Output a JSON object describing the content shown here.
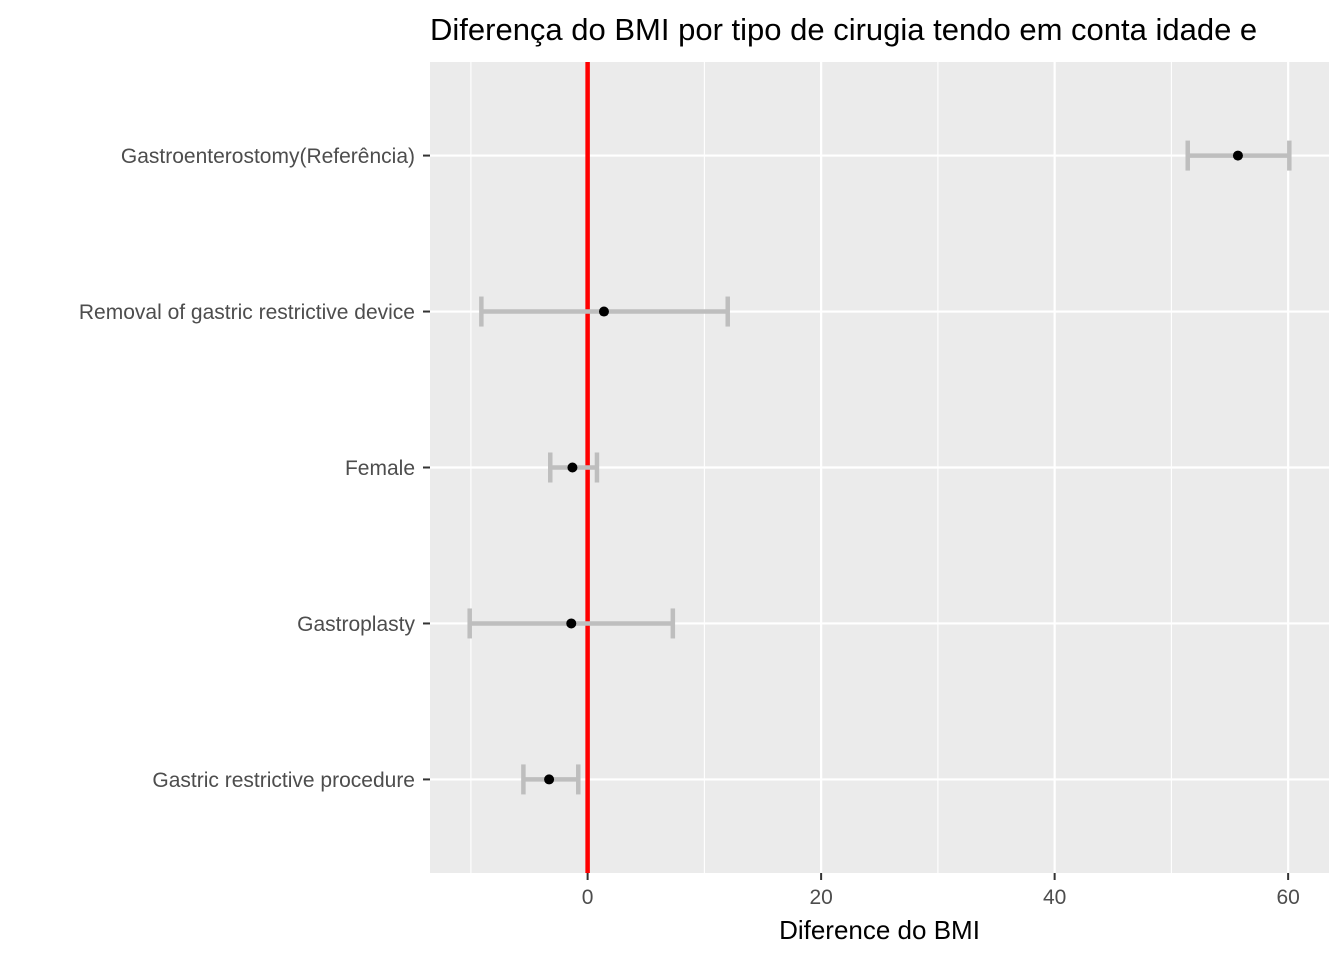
{
  "chart_data": {
    "type": "errorbar",
    "title": "Diferença do BMI por tipo de cirugia tendo em conta idade e",
    "xlabel": "Diference do BMI",
    "ylabel": "",
    "xlim": [
      -13.5,
      63.5
    ],
    "xticks": [
      0,
      20,
      40,
      60
    ],
    "grid": true,
    "reference_line": {
      "x": 0,
      "color": "#ff0000"
    },
    "colors": {
      "panel": "#ebebeb",
      "grid": "#ffffff",
      "errorbar": "#bebebe",
      "point": "#000000"
    },
    "categories": [
      "Gastroenterostomy(Referência)",
      "Removal of gastric restrictive device",
      "Female",
      "Gastroplasty",
      "Gastric restrictive procedure"
    ],
    "estimates": [
      55.7,
      1.4,
      -1.3,
      -1.4,
      -3.3
    ],
    "lower": [
      51.4,
      -9.1,
      -3.2,
      -10.1,
      -5.5
    ],
    "upper": [
      60.1,
      12.0,
      0.8,
      7.3,
      -0.8
    ]
  }
}
